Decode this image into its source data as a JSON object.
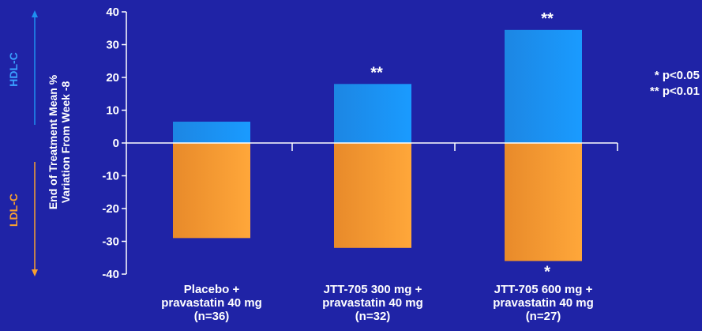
{
  "chart_data": {
    "type": "bar",
    "ylabel_line1": "End of Treatment Mean %",
    "ylabel_line2": "Variation From Week -8",
    "ylim": [
      -40,
      40
    ],
    "yticks": [
      40,
      30,
      20,
      10,
      0,
      -10,
      -20,
      -30,
      -40
    ],
    "side_labels": {
      "up": "HDL-C",
      "down": "LDL-C"
    },
    "categories": [
      {
        "line1": "Placebo +",
        "line2": "pravastatin 40 mg",
        "line3": "(n=36)"
      },
      {
        "line1": "JTT-705 300 mg +",
        "line2": "pravastatin 40 mg",
        "line3": "(n=32)"
      },
      {
        "line1": "JTT-705 600 mg +",
        "line2": "pravastatin 40 mg",
        "line3": "(n=27)"
      }
    ],
    "series": [
      {
        "name": "HDL-C",
        "values": [
          6.5,
          18,
          34.5
        ],
        "color": "#1e8ff0",
        "marks": [
          "",
          "**",
          "**"
        ]
      },
      {
        "name": "LDL-C",
        "values": [
          -29,
          -32,
          -36
        ],
        "color": "#f7a030",
        "marks": [
          "",
          "",
          "*"
        ]
      }
    ],
    "legend": [
      "* p<0.05",
      "** p<0.01"
    ]
  },
  "colors": {
    "background": "#1f23a6",
    "axis": "#ffffff",
    "hdl": "#1e8ff0",
    "ldl": "#f7a030"
  }
}
